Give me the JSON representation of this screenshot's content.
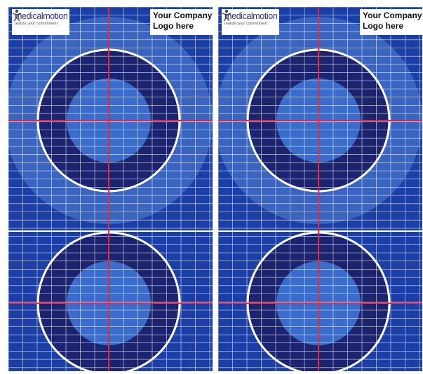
{
  "panels": [
    {
      "brand": {
        "wordmark": "medicalmotion",
        "tagline": "realize your commitment",
        "figure_icon": "person-figure-icon"
      },
      "company_logo": {
        "line1": "Your Company",
        "line2": "Logo here"
      }
    },
    {
      "brand": {
        "wordmark": "medicalmotion",
        "tagline": "realize your commitment",
        "figure_icon": "person-figure-icon"
      },
      "company_logo": {
        "line1": "Your Company",
        "line2": "Logo here"
      }
    }
  ],
  "colors": {
    "background": "#1b3fa6",
    "outer_halo": "#4a78cc",
    "target_ring": "#1c2470",
    "target_center": "#3a6ccc",
    "grid_line": "#ffffff",
    "crosshair": "#e8283c",
    "ring_outline": "#ffffff",
    "wordmark": "#2a2f8f"
  }
}
